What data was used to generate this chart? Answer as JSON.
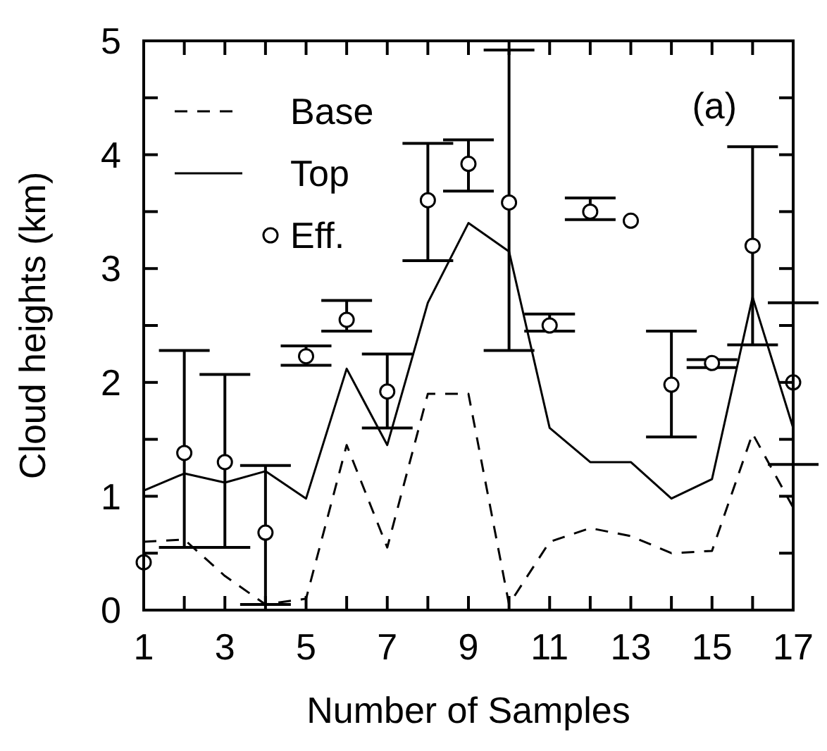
{
  "chart_data": {
    "type": "line",
    "xlabel": "Number of Samples",
    "ylabel": "Cloud heights (km)",
    "annotations": [
      "(a)"
    ],
    "legend": "top left",
    "grid": false,
    "x": [
      1,
      2,
      3,
      4,
      5,
      6,
      7,
      8,
      9,
      10,
      11,
      12,
      13,
      14,
      15,
      16,
      17
    ],
    "xlim": [
      1,
      17
    ],
    "xticks": [
      1,
      {
        "value": 2,
        "label": null
      },
      3,
      {
        "value": 4,
        "label": null
      },
      5,
      {
        "value": 6,
        "label": null
      },
      7,
      {
        "value": 8,
        "label": null
      },
      9,
      {
        "value": 10,
        "label": null
      },
      11,
      {
        "value": 12,
        "label": null
      },
      13,
      {
        "value": 14,
        "label": null
      },
      15,
      {
        "value": 16,
        "label": null
      },
      17
    ],
    "ylim": [
      0,
      5
    ],
    "yticks": [
      0,
      {
        "value": 0.5,
        "label": null
      },
      1,
      {
        "value": 1.5,
        "label": null
      },
      2,
      {
        "value": 2.5,
        "label": null
      },
      3,
      {
        "value": 3.5,
        "label": null
      },
      4,
      {
        "value": 4.5,
        "label": null
      },
      5
    ],
    "series": [
      {
        "name": "Base",
        "line_style": "dashed",
        "color": "#000000",
        "values": [
          0.6,
          0.62,
          0.3,
          0.05,
          0.1,
          1.45,
          0.55,
          1.9,
          1.9,
          0.05,
          0.6,
          0.72,
          0.65,
          0.5,
          0.52,
          1.55,
          0.9
        ]
      },
      {
        "name": "Top",
        "line_style": "solid",
        "color": "#000000",
        "values": [
          1.05,
          1.2,
          1.12,
          1.22,
          0.98,
          2.12,
          1.45,
          2.7,
          3.4,
          3.15,
          1.6,
          1.3,
          1.3,
          0.98,
          1.15,
          2.75,
          1.6
        ]
      },
      {
        "name": "Eff.",
        "type": "scatter",
        "marker": "circle",
        "color": "#000000",
        "values": [
          0.42,
          1.38,
          1.3,
          0.68,
          2.23,
          2.55,
          1.92,
          3.6,
          3.92,
          3.58,
          2.5,
          3.5,
          3.42,
          1.98,
          2.17,
          3.2,
          2.0
        ],
        "errors": [
          null,
          [
            0.55,
            2.28
          ],
          [
            0.55,
            2.07
          ],
          [
            0.05,
            1.27
          ],
          [
            2.15,
            2.32
          ],
          [
            2.45,
            2.72
          ],
          [
            1.6,
            2.25
          ],
          [
            3.07,
            4.1
          ],
          [
            3.68,
            4.13
          ],
          [
            2.28,
            4.92
          ],
          [
            2.45,
            2.6
          ],
          [
            3.43,
            3.62
          ],
          null,
          [
            1.52,
            2.45
          ],
          [
            2.13,
            2.2
          ],
          [
            2.33,
            4.07
          ],
          [
            1.28,
            2.7
          ]
        ]
      }
    ]
  }
}
